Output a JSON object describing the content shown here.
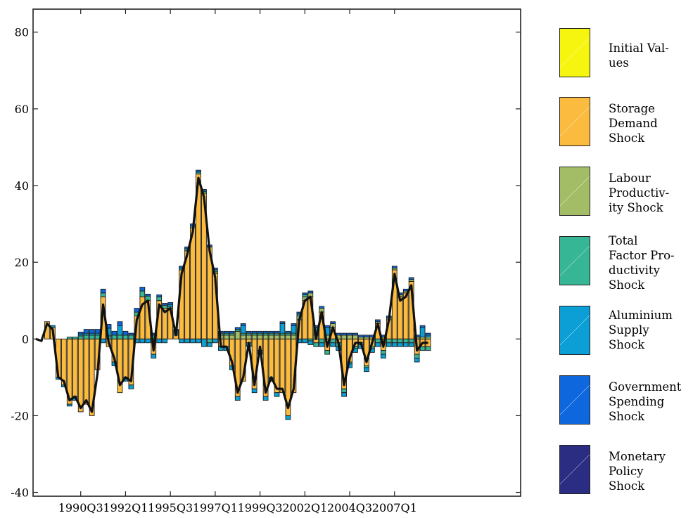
{
  "chart_data": {
    "type": "bar",
    "stacked": true,
    "y_tick_labels": [
      "80",
      "60",
      "40",
      "20",
      "0",
      "-20",
      "-40"
    ],
    "x_tick_labels": [
      "1990Q3",
      "1992Q1",
      "1995Q3",
      "1997Q1",
      "1999Q3",
      "2002Q1",
      "2004Q3",
      "2007Q1"
    ],
    "ylim": [
      -41,
      86
    ],
    "xlim": [
      -0.5,
      86.5
    ],
    "x_tick_positions": [
      8,
      16,
      24,
      32,
      40,
      48,
      56,
      64
    ],
    "grid": false,
    "legend_position": "right",
    "series": [
      {
        "name": "Initial Values",
        "color": "#f5f50f",
        "values": [
          0,
          0,
          0,
          0,
          0,
          0,
          0,
          0,
          0,
          0,
          0,
          0,
          0,
          0,
          0,
          0,
          0,
          0,
          0,
          0,
          0,
          0,
          0,
          0,
          0,
          0,
          0,
          0,
          0,
          0,
          0,
          0,
          0,
          0,
          0,
          0,
          0,
          0,
          0,
          0,
          0,
          0,
          0,
          0,
          0,
          0,
          0,
          0,
          0,
          0,
          0,
          0,
          0,
          0,
          0,
          0,
          0,
          0,
          0,
          0,
          0,
          0,
          0,
          0,
          0,
          0,
          0,
          0,
          0,
          0,
          0
        ]
      },
      {
        "name": "Storage Demand Shock",
        "color": "#fbbb3f",
        "values": [
          0,
          0,
          4.5,
          3,
          -10,
          -12,
          -17,
          -15,
          -19,
          -17,
          -20,
          -8,
          11,
          -2,
          -6,
          -14,
          -10,
          -12,
          6,
          11,
          10,
          -4,
          10,
          8,
          8,
          1,
          18,
          23,
          29,
          43,
          38,
          24,
          17,
          -2,
          -2,
          -7,
          -15,
          -11,
          -1,
          -13,
          -3,
          -15,
          -10,
          -14,
          -14,
          -20,
          -14,
          5,
          10,
          11,
          -1,
          7,
          -3,
          3,
          -1,
          -13,
          -6,
          -2,
          -1,
          -7,
          -2,
          4,
          -3,
          5,
          18,
          11,
          12,
          15,
          -4,
          -2,
          -2
        ]
      },
      {
        "name": "Labour Productivity Shock",
        "color": "#a3bd67",
        "values": [
          0,
          0,
          0,
          0,
          0,
          0,
          0,
          0,
          0,
          0,
          0,
          0,
          0,
          0,
          0,
          0,
          0,
          0,
          0,
          0,
          0,
          0,
          0,
          0,
          0,
          0,
          0,
          0,
          0,
          0,
          0,
          0,
          0.5,
          1,
          1,
          1,
          2,
          1,
          1,
          1,
          1,
          1,
          1,
          1,
          1,
          1,
          1,
          1,
          1,
          1,
          1,
          1,
          1,
          1,
          1,
          1,
          1,
          1,
          0.5,
          0.5,
          0.5,
          0.5,
          0.5,
          0.5,
          0.5,
          0.5,
          0.5,
          0.5,
          0.5,
          0.5,
          0.5
        ]
      },
      {
        "name": "Total Factor Productivity Shock",
        "color": "#36b695",
        "values": [
          0,
          0,
          0,
          0,
          0,
          0,
          0.5,
          0.5,
          0.8,
          1,
          1,
          1,
          1,
          0.8,
          1,
          1,
          1,
          1,
          1,
          1.5,
          1.2,
          1,
          1,
          0.8,
          0.5,
          0.5,
          0.5,
          0.5,
          0.5,
          0.5,
          0.5,
          -1,
          0.5,
          0.5,
          0.5,
          0.5,
          0.5,
          0.5,
          0.5,
          0.5,
          0.5,
          0.5,
          0.5,
          0.5,
          0.5,
          0.5,
          0.5,
          0.5,
          0.5,
          -0.5,
          -1,
          -1,
          -1,
          -1,
          -1,
          -1,
          -0.5,
          -0.5,
          -0.5,
          -0.5,
          -0.5,
          -1,
          -1,
          -1,
          -1,
          -1,
          -1,
          -1,
          -1,
          -1,
          -1
        ]
      },
      {
        "name": "Aluminium Supply Shock",
        "color": "#0b9fd5",
        "values": [
          0,
          0,
          0,
          0.5,
          -0.5,
          -0.5,
          -0.5,
          -1,
          0.5,
          0.5,
          0.5,
          0.5,
          -1,
          2,
          -1,
          2.5,
          -1,
          -1,
          -1,
          -1,
          -1,
          -1,
          -1,
          -1,
          0.5,
          0.5,
          -1,
          -1,
          -1,
          -1,
          -2,
          -1,
          -1,
          -1,
          -1,
          -1,
          -1,
          2,
          -1,
          -1,
          -1,
          -1,
          -1,
          -1,
          2.5,
          -1,
          2,
          -1,
          -1,
          -1,
          2,
          -1,
          2,
          -1,
          -1,
          -1,
          -1,
          -1,
          -1,
          -1,
          -1,
          -1,
          -1,
          -1,
          -1,
          -1,
          -1,
          -1,
          -1,
          2.5,
          0.5
        ]
      },
      {
        "name": "Government Spending Shock",
        "color": "#0f67de",
        "values": [
          0,
          0,
          0,
          0,
          0,
          0,
          0,
          0,
          0.5,
          1,
          1,
          1,
          1,
          1,
          1,
          1,
          1,
          0.5,
          1,
          1,
          0.5,
          0.5,
          0.5,
          0.5,
          0.5,
          0.5,
          0.5,
          0.5,
          0.5,
          0.5,
          0.5,
          0.5,
          0.5,
          0.5,
          0.5,
          0.5,
          0.5,
          0.5,
          0.5,
          0.5,
          0.5,
          0.5,
          0.5,
          0.5,
          0.5,
          0.5,
          0.5,
          0.5,
          0.5,
          0.5,
          0.5,
          0.5,
          0.5,
          0.5,
          0.5,
          0.5,
          0.5,
          0.5,
          0.5,
          0.5,
          0.5,
          0.5,
          0.5,
          0.5,
          0.5,
          0.5,
          0.5,
          0.5,
          0.5,
          0.5,
          0.5
        ]
      },
      {
        "name": "Monetary Policy Shock",
        "color": "#2a2d82",
        "values": [
          0,
          0,
          0,
          0,
          0,
          0,
          0,
          0,
          0,
          0,
          0,
          0,
          0,
          0,
          0,
          0,
          0,
          0,
          0,
          0,
          0,
          0,
          0,
          0,
          0,
          0,
          0,
          0,
          0,
          0,
          0,
          0,
          0,
          0,
          0,
          0,
          0,
          0,
          0,
          0,
          0,
          0,
          0,
          0,
          0,
          0,
          0,
          0,
          0,
          0,
          0,
          0,
          0,
          0,
          0,
          0,
          0,
          0,
          0,
          0,
          0,
          0,
          0,
          0,
          0,
          0,
          0,
          0,
          0,
          0,
          0
        ]
      }
    ],
    "total_line": [
      0,
      -0.5,
      4,
      2.5,
      -10,
      -11,
      -16,
      -15,
      -18,
      -16,
      -19,
      -9,
      9,
      -1,
      -5,
      -12,
      -10,
      -11,
      5,
      9,
      10,
      -3,
      9,
      7,
      8,
      1,
      17,
      22,
      28,
      42,
      37,
      23,
      16,
      -2,
      -2,
      -6,
      -14,
      -10,
      -1,
      -12,
      -2,
      -14,
      -10,
      -13,
      -13,
      -18,
      -13,
      5,
      10,
      11,
      0,
      7,
      -2,
      3,
      -1,
      -12,
      -5,
      -1,
      -1,
      -6,
      -1,
      4,
      -2,
      5,
      17,
      10,
      11,
      14,
      -3,
      -1,
      -1
    ],
    "total_line_color": "#111111"
  }
}
